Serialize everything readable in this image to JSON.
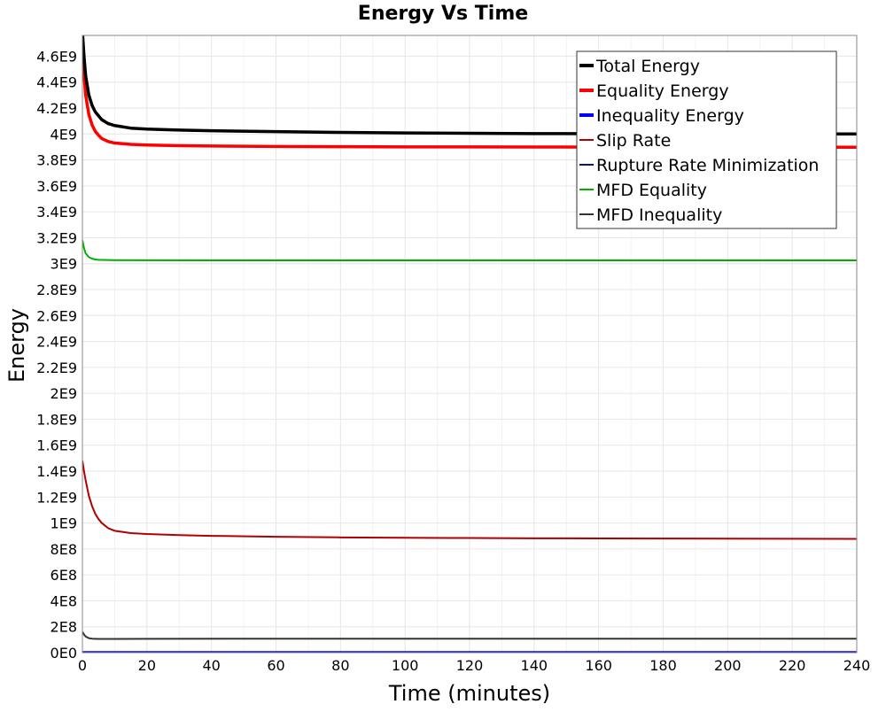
{
  "chart_data": {
    "type": "line",
    "title": "Energy Vs Time",
    "xlabel": "Time (minutes)",
    "ylabel": "Energy",
    "xlim": [
      0,
      240
    ],
    "ylim": [
      0,
      4760000000
    ],
    "x_ticks": [
      {
        "value": 0,
        "label": "0"
      },
      {
        "value": 20,
        "label": "20"
      },
      {
        "value": 40,
        "label": "40"
      },
      {
        "value": 60,
        "label": "60"
      },
      {
        "value": 80,
        "label": "80"
      },
      {
        "value": 100,
        "label": "100"
      },
      {
        "value": 120,
        "label": "120"
      },
      {
        "value": 140,
        "label": "140"
      },
      {
        "value": 160,
        "label": "160"
      },
      {
        "value": 180,
        "label": "180"
      },
      {
        "value": 200,
        "label": "200"
      },
      {
        "value": 220,
        "label": "220"
      },
      {
        "value": 240,
        "label": "240"
      }
    ],
    "y_ticks": [
      {
        "value": 0,
        "label": "0E0"
      },
      {
        "value": 200000000,
        "label": "2E8"
      },
      {
        "value": 400000000,
        "label": "4E8"
      },
      {
        "value": 600000000,
        "label": "6E8"
      },
      {
        "value": 800000000,
        "label": "8E8"
      },
      {
        "value": 1000000000,
        "label": "1E9"
      },
      {
        "value": 1200000000,
        "label": "1.2E9"
      },
      {
        "value": 1400000000,
        "label": "1.4E9"
      },
      {
        "value": 1600000000,
        "label": "1.6E9"
      },
      {
        "value": 1800000000,
        "label": "1.8E9"
      },
      {
        "value": 2000000000,
        "label": "2E9"
      },
      {
        "value": 2200000000,
        "label": "2.2E9"
      },
      {
        "value": 2400000000,
        "label": "2.4E9"
      },
      {
        "value": 2600000000,
        "label": "2.6E9"
      },
      {
        "value": 2800000000,
        "label": "2.8E9"
      },
      {
        "value": 3000000000,
        "label": "3E9"
      },
      {
        "value": 3200000000,
        "label": "3.2E9"
      },
      {
        "value": 3400000000,
        "label": "3.4E9"
      },
      {
        "value": 3600000000,
        "label": "3.6E9"
      },
      {
        "value": 3800000000,
        "label": "3.8E9"
      },
      {
        "value": 4000000000,
        "label": "4E9"
      },
      {
        "value": 4200000000,
        "label": "4.2E9"
      },
      {
        "value": 4400000000,
        "label": "4.4E9"
      },
      {
        "value": 4600000000,
        "label": "4.6E9"
      }
    ],
    "grid": true,
    "legend_position": "top-right",
    "series": [
      {
        "name": "Total Energy",
        "color": "#000000",
        "thick": true,
        "points": [
          [
            0,
            4790000000
          ],
          [
            0.5,
            4600000000
          ],
          [
            1,
            4450000000
          ],
          [
            2,
            4300000000
          ],
          [
            3,
            4220000000
          ],
          [
            4,
            4170000000
          ],
          [
            5,
            4140000000
          ],
          [
            6,
            4110000000
          ],
          [
            8,
            4080000000
          ],
          [
            10,
            4065000000
          ],
          [
            15,
            4045000000
          ],
          [
            20,
            4038000000
          ],
          [
            30,
            4030000000
          ],
          [
            40,
            4025000000
          ],
          [
            60,
            4018000000
          ],
          [
            80,
            4012000000
          ],
          [
            100,
            4008000000
          ],
          [
            120,
            4005000000
          ],
          [
            140,
            4003000000
          ],
          [
            160,
            4002000000
          ],
          [
            180,
            4001000000
          ],
          [
            200,
            4000500000
          ],
          [
            220,
            4000000000
          ],
          [
            240,
            4000000000
          ]
        ]
      },
      {
        "name": "Equality Energy",
        "color": "#ff0000",
        "thick": true,
        "points": [
          [
            0,
            4660000000
          ],
          [
            0.5,
            4460000000
          ],
          [
            1,
            4300000000
          ],
          [
            2,
            4150000000
          ],
          [
            3,
            4070000000
          ],
          [
            4,
            4020000000
          ],
          [
            5,
            3990000000
          ],
          [
            6,
            3965000000
          ],
          [
            8,
            3942000000
          ],
          [
            10,
            3930000000
          ],
          [
            15,
            3920000000
          ],
          [
            20,
            3915000000
          ],
          [
            30,
            3910000000
          ],
          [
            40,
            3907000000
          ],
          [
            60,
            3904000000
          ],
          [
            80,
            3902000000
          ],
          [
            100,
            3900500000
          ],
          [
            120,
            3900000000
          ],
          [
            140,
            3899500000
          ],
          [
            160,
            3899000000
          ],
          [
            180,
            3898700000
          ],
          [
            200,
            3898500000
          ],
          [
            220,
            3898300000
          ],
          [
            240,
            3898000000
          ]
        ]
      },
      {
        "name": "Inequality Energy",
        "color": "#0000ff",
        "thick": true,
        "points": [
          [
            0,
            0
          ],
          [
            240,
            0
          ]
        ]
      },
      {
        "name": "Slip Rate",
        "color": "#b00000",
        "thick": false,
        "points": [
          [
            0,
            1480000000
          ],
          [
            0.5,
            1400000000
          ],
          [
            1,
            1330000000
          ],
          [
            2,
            1210000000
          ],
          [
            3,
            1130000000
          ],
          [
            4,
            1070000000
          ],
          [
            5,
            1030000000
          ],
          [
            6,
            1000000000
          ],
          [
            8,
            960000000
          ],
          [
            10,
            940000000
          ],
          [
            15,
            922000000
          ],
          [
            20,
            915000000
          ],
          [
            30,
            907000000
          ],
          [
            40,
            901000000
          ],
          [
            60,
            894000000
          ],
          [
            80,
            889000000
          ],
          [
            100,
            886000000
          ],
          [
            120,
            884000000
          ],
          [
            140,
            882000000
          ],
          [
            160,
            881000000
          ],
          [
            180,
            880000000
          ],
          [
            200,
            879000000
          ],
          [
            220,
            878500000
          ],
          [
            240,
            878000000
          ]
        ]
      },
      {
        "name": "Rupture Rate Minimization",
        "color": "#10107a",
        "thick": false,
        "points": [
          [
            0,
            0
          ],
          [
            240,
            0
          ]
        ]
      },
      {
        "name": "MFD Equality",
        "color": "#00b000",
        "thick": false,
        "points": [
          [
            0,
            3180000000
          ],
          [
            0.5,
            3120000000
          ],
          [
            1,
            3080000000
          ],
          [
            2,
            3050000000
          ],
          [
            3,
            3038000000
          ],
          [
            4,
            3032000000
          ],
          [
            5,
            3030000000
          ],
          [
            8,
            3028000000
          ],
          [
            10,
            3027000000
          ],
          [
            20,
            3026000000
          ],
          [
            60,
            3025000000
          ],
          [
            120,
            3025000000
          ],
          [
            180,
            3025000000
          ],
          [
            240,
            3025000000
          ]
        ]
      },
      {
        "name": "MFD Inequality",
        "color": "#333333",
        "thick": false,
        "points": [
          [
            0,
            160000000
          ],
          [
            0.5,
            140000000
          ],
          [
            1,
            125000000
          ],
          [
            2,
            112000000
          ],
          [
            3,
            108000000
          ],
          [
            5,
            106000000
          ],
          [
            10,
            106000000
          ],
          [
            20,
            107000000
          ],
          [
            60,
            108000000
          ],
          [
            120,
            108000000
          ],
          [
            180,
            108000000
          ],
          [
            240,
            108000000
          ]
        ]
      }
    ]
  }
}
